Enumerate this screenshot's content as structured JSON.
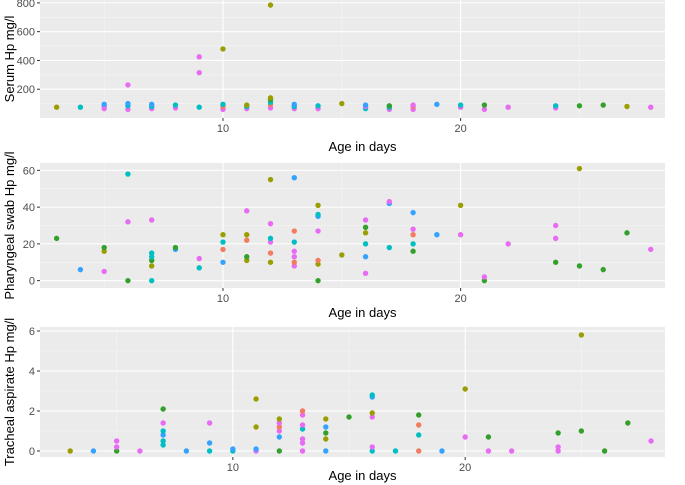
{
  "colors": {
    "panel_bg": "#ebebeb",
    "grid_major": "#ffffff",
    "grid_minor": "#f5f5f5",
    "tick_text": "#4d4d4d",
    "palette": [
      "#9a9e00",
      "#33a02c",
      "#00bfc4",
      "#35a2ff",
      "#f17c5f",
      "#e86bf3"
    ]
  },
  "chart_data": [
    {
      "type": "scatter",
      "xlabel": "Age in days",
      "ylabel": "Serum Hp mg/l",
      "xlim": [
        2.3,
        28.6
      ],
      "ylim": [
        0,
        820
      ],
      "xticks": [
        10,
        20
      ],
      "yticks": [
        200,
        400,
        600,
        800
      ],
      "points": [
        {
          "x": 3,
          "y": 75,
          "c": 0
        },
        {
          "x": 4,
          "y": 75,
          "c": 2
        },
        {
          "x": 5,
          "y": 65,
          "c": 5
        },
        {
          "x": 5,
          "y": 80,
          "c": 5
        },
        {
          "x": 5,
          "y": 95,
          "c": 3
        },
        {
          "x": 6,
          "y": 60,
          "c": 5
        },
        {
          "x": 6,
          "y": 85,
          "c": 2
        },
        {
          "x": 6,
          "y": 100,
          "c": 3
        },
        {
          "x": 6,
          "y": 230,
          "c": 5
        },
        {
          "x": 7,
          "y": 65,
          "c": 5
        },
        {
          "x": 7,
          "y": 80,
          "c": 2
        },
        {
          "x": 7,
          "y": 95,
          "c": 3
        },
        {
          "x": 8,
          "y": 70,
          "c": 5
        },
        {
          "x": 8,
          "y": 90,
          "c": 2
        },
        {
          "x": 9,
          "y": 75,
          "c": 2
        },
        {
          "x": 9,
          "y": 315,
          "c": 5
        },
        {
          "x": 9,
          "y": 425,
          "c": 5
        },
        {
          "x": 10,
          "y": 60,
          "c": 5
        },
        {
          "x": 10,
          "y": 80,
          "c": 4
        },
        {
          "x": 10,
          "y": 95,
          "c": 2
        },
        {
          "x": 10,
          "y": 480,
          "c": 0
        },
        {
          "x": 11,
          "y": 65,
          "c": 5
        },
        {
          "x": 11,
          "y": 80,
          "c": 2
        },
        {
          "x": 11,
          "y": 90,
          "c": 0
        },
        {
          "x": 12,
          "y": 70,
          "c": 5
        },
        {
          "x": 12,
          "y": 95,
          "c": 4
        },
        {
          "x": 12,
          "y": 110,
          "c": 2
        },
        {
          "x": 12,
          "y": 130,
          "c": 1
        },
        {
          "x": 12,
          "y": 140,
          "c": 0
        },
        {
          "x": 12,
          "y": 785,
          "c": 0
        },
        {
          "x": 13,
          "y": 65,
          "c": 5
        },
        {
          "x": 13,
          "y": 80,
          "c": 2
        },
        {
          "x": 13,
          "y": 95,
          "c": 3
        },
        {
          "x": 14,
          "y": 65,
          "c": 5
        },
        {
          "x": 14,
          "y": 85,
          "c": 2
        },
        {
          "x": 15,
          "y": 100,
          "c": 0
        },
        {
          "x": 16,
          "y": 65,
          "c": 2
        },
        {
          "x": 16,
          "y": 80,
          "c": 5
        },
        {
          "x": 16,
          "y": 90,
          "c": 3
        },
        {
          "x": 17,
          "y": 60,
          "c": 5
        },
        {
          "x": 17,
          "y": 75,
          "c": 2
        },
        {
          "x": 17,
          "y": 85,
          "c": 1
        },
        {
          "x": 18,
          "y": 60,
          "c": 5
        },
        {
          "x": 18,
          "y": 80,
          "c": 4
        },
        {
          "x": 18,
          "y": 90,
          "c": 5
        },
        {
          "x": 19,
          "y": 95,
          "c": 3
        },
        {
          "x": 20,
          "y": 75,
          "c": 5
        },
        {
          "x": 20,
          "y": 90,
          "c": 2
        },
        {
          "x": 21,
          "y": 60,
          "c": 5
        },
        {
          "x": 21,
          "y": 90,
          "c": 1
        },
        {
          "x": 22,
          "y": 75,
          "c": 5
        },
        {
          "x": 24,
          "y": 70,
          "c": 5
        },
        {
          "x": 24,
          "y": 85,
          "c": 2
        },
        {
          "x": 25,
          "y": 85,
          "c": 1
        },
        {
          "x": 26,
          "y": 90,
          "c": 1
        },
        {
          "x": 27,
          "y": 80,
          "c": 0
        },
        {
          "x": 28,
          "y": 75,
          "c": 5
        }
      ]
    },
    {
      "type": "scatter",
      "xlabel": "Age in days",
      "ylabel": "Pharyngeal swab Hp mg/l",
      "xlim": [
        2.3,
        28.6
      ],
      "ylim": [
        -4,
        64
      ],
      "xticks": [
        10,
        20
      ],
      "yticks": [
        0,
        20,
        40,
        60
      ],
      "points": [
        {
          "x": 3,
          "y": 23,
          "c": 1
        },
        {
          "x": 4,
          "y": 6,
          "c": 3
        },
        {
          "x": 5,
          "y": 5,
          "c": 5
        },
        {
          "x": 5,
          "y": 16,
          "c": 0
        },
        {
          "x": 5,
          "y": 18,
          "c": 1
        },
        {
          "x": 6,
          "y": 0,
          "c": 1
        },
        {
          "x": 6,
          "y": 32,
          "c": 5
        },
        {
          "x": 6,
          "y": 58,
          "c": 2
        },
        {
          "x": 7,
          "y": 0,
          "c": 2
        },
        {
          "x": 7,
          "y": 8,
          "c": 0
        },
        {
          "x": 7,
          "y": 11,
          "c": 1
        },
        {
          "x": 7,
          "y": 13,
          "c": 2
        },
        {
          "x": 7,
          "y": 15,
          "c": 2
        },
        {
          "x": 7,
          "y": 33,
          "c": 5
        },
        {
          "x": 8,
          "y": 17,
          "c": 3
        },
        {
          "x": 8,
          "y": 18,
          "c": 1
        },
        {
          "x": 9,
          "y": 7,
          "c": 2
        },
        {
          "x": 9,
          "y": 12,
          "c": 5
        },
        {
          "x": 10,
          "y": 10,
          "c": 3
        },
        {
          "x": 10,
          "y": 17,
          "c": 4
        },
        {
          "x": 10,
          "y": 21,
          "c": 2
        },
        {
          "x": 10,
          "y": 25,
          "c": 0
        },
        {
          "x": 11,
          "y": 11,
          "c": 0
        },
        {
          "x": 11,
          "y": 13,
          "c": 1
        },
        {
          "x": 11,
          "y": 22,
          "c": 4
        },
        {
          "x": 11,
          "y": 25,
          "c": 0
        },
        {
          "x": 11,
          "y": 38,
          "c": 5
        },
        {
          "x": 12,
          "y": 10,
          "c": 0
        },
        {
          "x": 12,
          "y": 15,
          "c": 4
        },
        {
          "x": 12,
          "y": 21,
          "c": 5
        },
        {
          "x": 12,
          "y": 23,
          "c": 2
        },
        {
          "x": 12,
          "y": 31,
          "c": 5
        },
        {
          "x": 12,
          "y": 55,
          "c": 0
        },
        {
          "x": 13,
          "y": 8,
          "c": 5
        },
        {
          "x": 13,
          "y": 10,
          "c": 4
        },
        {
          "x": 13,
          "y": 13,
          "c": 5
        },
        {
          "x": 13,
          "y": 16,
          "c": 5
        },
        {
          "x": 13,
          "y": 21,
          "c": 2
        },
        {
          "x": 13,
          "y": 27,
          "c": 4
        },
        {
          "x": 13,
          "y": 56,
          "c": 3
        },
        {
          "x": 14,
          "y": 0,
          "c": 1
        },
        {
          "x": 14,
          "y": 9,
          "c": 0
        },
        {
          "x": 14,
          "y": 11,
          "c": 4
        },
        {
          "x": 14,
          "y": 27,
          "c": 5
        },
        {
          "x": 14,
          "y": 35,
          "c": 3
        },
        {
          "x": 14,
          "y": 36,
          "c": 2
        },
        {
          "x": 14,
          "y": 41,
          "c": 0
        },
        {
          "x": 15,
          "y": 14,
          "c": 0
        },
        {
          "x": 16,
          "y": 4,
          "c": 5
        },
        {
          "x": 16,
          "y": 13,
          "c": 3
        },
        {
          "x": 16,
          "y": 20,
          "c": 2
        },
        {
          "x": 16,
          "y": 26,
          "c": 0
        },
        {
          "x": 16,
          "y": 29,
          "c": 1
        },
        {
          "x": 16,
          "y": 33,
          "c": 5
        },
        {
          "x": 17,
          "y": 18,
          "c": 2
        },
        {
          "x": 17,
          "y": 42,
          "c": 3
        },
        {
          "x": 17,
          "y": 43,
          "c": 5
        },
        {
          "x": 18,
          "y": 16,
          "c": 1
        },
        {
          "x": 18,
          "y": 20,
          "c": 2
        },
        {
          "x": 18,
          "y": 25,
          "c": 4
        },
        {
          "x": 18,
          "y": 28,
          "c": 5
        },
        {
          "x": 18,
          "y": 37,
          "c": 3
        },
        {
          "x": 19,
          "y": 25,
          "c": 3
        },
        {
          "x": 20,
          "y": 25,
          "c": 5
        },
        {
          "x": 20,
          "y": 41,
          "c": 0
        },
        {
          "x": 21,
          "y": 0,
          "c": 1
        },
        {
          "x": 21,
          "y": 2,
          "c": 5
        },
        {
          "x": 22,
          "y": 20,
          "c": 5
        },
        {
          "x": 24,
          "y": 10,
          "c": 1
        },
        {
          "x": 24,
          "y": 23,
          "c": 5
        },
        {
          "x": 24,
          "y": 30,
          "c": 5
        },
        {
          "x": 25,
          "y": 8,
          "c": 1
        },
        {
          "x": 25,
          "y": 61,
          "c": 0
        },
        {
          "x": 26,
          "y": 6,
          "c": 1
        },
        {
          "x": 27,
          "y": 26,
          "c": 1
        },
        {
          "x": 28,
          "y": 17,
          "c": 5
        }
      ]
    },
    {
      "type": "scatter",
      "xlabel": "Age in days",
      "ylabel": "Tracheal aspirate Hp mg/l",
      "xlim": [
        1.7,
        28.6
      ],
      "ylim": [
        -0.3,
        6.2
      ],
      "xticks": [
        10,
        20
      ],
      "yticks": [
        0,
        2,
        4,
        6
      ],
      "points": [
        {
          "x": 3,
          "y": 0.0,
          "c": 0
        },
        {
          "x": 4,
          "y": 0.0,
          "c": 3
        },
        {
          "x": 5,
          "y": 0.0,
          "c": 1
        },
        {
          "x": 5,
          "y": 0.2,
          "c": 5
        },
        {
          "x": 5,
          "y": 0.5,
          "c": 5
        },
        {
          "x": 6,
          "y": 0.0,
          "c": 5
        },
        {
          "x": 7,
          "y": 0.3,
          "c": 2
        },
        {
          "x": 7,
          "y": 0.5,
          "c": 2
        },
        {
          "x": 7,
          "y": 0.8,
          "c": 3
        },
        {
          "x": 7,
          "y": 1.0,
          "c": 2
        },
        {
          "x": 7,
          "y": 1.4,
          "c": 5
        },
        {
          "x": 7,
          "y": 2.1,
          "c": 1
        },
        {
          "x": 8,
          "y": 0.0,
          "c": 3
        },
        {
          "x": 9,
          "y": 0.0,
          "c": 2
        },
        {
          "x": 9,
          "y": 0.4,
          "c": 3
        },
        {
          "x": 9,
          "y": 1.4,
          "c": 5
        },
        {
          "x": 10,
          "y": 0.0,
          "c": 2
        },
        {
          "x": 10,
          "y": 0.1,
          "c": 3
        },
        {
          "x": 11,
          "y": 0.0,
          "c": 5
        },
        {
          "x": 11,
          "y": 0.1,
          "c": 3
        },
        {
          "x": 11,
          "y": 1.2,
          "c": 0
        },
        {
          "x": 11,
          "y": 2.6,
          "c": 0
        },
        {
          "x": 12,
          "y": 0.0,
          "c": 1
        },
        {
          "x": 12,
          "y": 0.7,
          "c": 3
        },
        {
          "x": 12,
          "y": 1.0,
          "c": 5
        },
        {
          "x": 12,
          "y": 1.2,
          "c": 4
        },
        {
          "x": 12,
          "y": 1.4,
          "c": 5
        },
        {
          "x": 12,
          "y": 1.6,
          "c": 0
        },
        {
          "x": 13,
          "y": 0.0,
          "c": 5
        },
        {
          "x": 13,
          "y": 0.4,
          "c": 5
        },
        {
          "x": 13,
          "y": 0.6,
          "c": 5
        },
        {
          "x": 13,
          "y": 1.1,
          "c": 2
        },
        {
          "x": 13,
          "y": 1.3,
          "c": 5
        },
        {
          "x": 13,
          "y": 1.8,
          "c": 5
        },
        {
          "x": 13,
          "y": 2.0,
          "c": 4
        },
        {
          "x": 14,
          "y": 0.0,
          "c": 3
        },
        {
          "x": 14,
          "y": 0.6,
          "c": 0
        },
        {
          "x": 14,
          "y": 0.9,
          "c": 1
        },
        {
          "x": 14,
          "y": 1.2,
          "c": 3
        },
        {
          "x": 14,
          "y": 1.6,
          "c": 0
        },
        {
          "x": 15,
          "y": 1.7,
          "c": 1
        },
        {
          "x": 16,
          "y": 0.0,
          "c": 2
        },
        {
          "x": 16,
          "y": 0.2,
          "c": 5
        },
        {
          "x": 16,
          "y": 1.7,
          "c": 5
        },
        {
          "x": 16,
          "y": 1.9,
          "c": 0
        },
        {
          "x": 16,
          "y": 2.7,
          "c": 3
        },
        {
          "x": 16,
          "y": 2.8,
          "c": 2
        },
        {
          "x": 17,
          "y": 0.0,
          "c": 2
        },
        {
          "x": 18,
          "y": 0.0,
          "c": 4
        },
        {
          "x": 18,
          "y": 0.8,
          "c": 2
        },
        {
          "x": 18,
          "y": 1.3,
          "c": 4
        },
        {
          "x": 18,
          "y": 1.8,
          "c": 1
        },
        {
          "x": 19,
          "y": 0.0,
          "c": 3
        },
        {
          "x": 20,
          "y": 0.7,
          "c": 5
        },
        {
          "x": 20,
          "y": 3.1,
          "c": 0
        },
        {
          "x": 21,
          "y": 0.0,
          "c": 5
        },
        {
          "x": 21,
          "y": 0.7,
          "c": 1
        },
        {
          "x": 22,
          "y": 0.0,
          "c": 5
        },
        {
          "x": 24,
          "y": 0.0,
          "c": 5
        },
        {
          "x": 24,
          "y": 0.2,
          "c": 5
        },
        {
          "x": 24,
          "y": 0.9,
          "c": 1
        },
        {
          "x": 25,
          "y": 1.0,
          "c": 1
        },
        {
          "x": 25,
          "y": 5.8,
          "c": 0
        },
        {
          "x": 26,
          "y": 0.0,
          "c": 1
        },
        {
          "x": 27,
          "y": 1.4,
          "c": 1
        },
        {
          "x": 28,
          "y": 0.5,
          "c": 5
        }
      ]
    }
  ]
}
